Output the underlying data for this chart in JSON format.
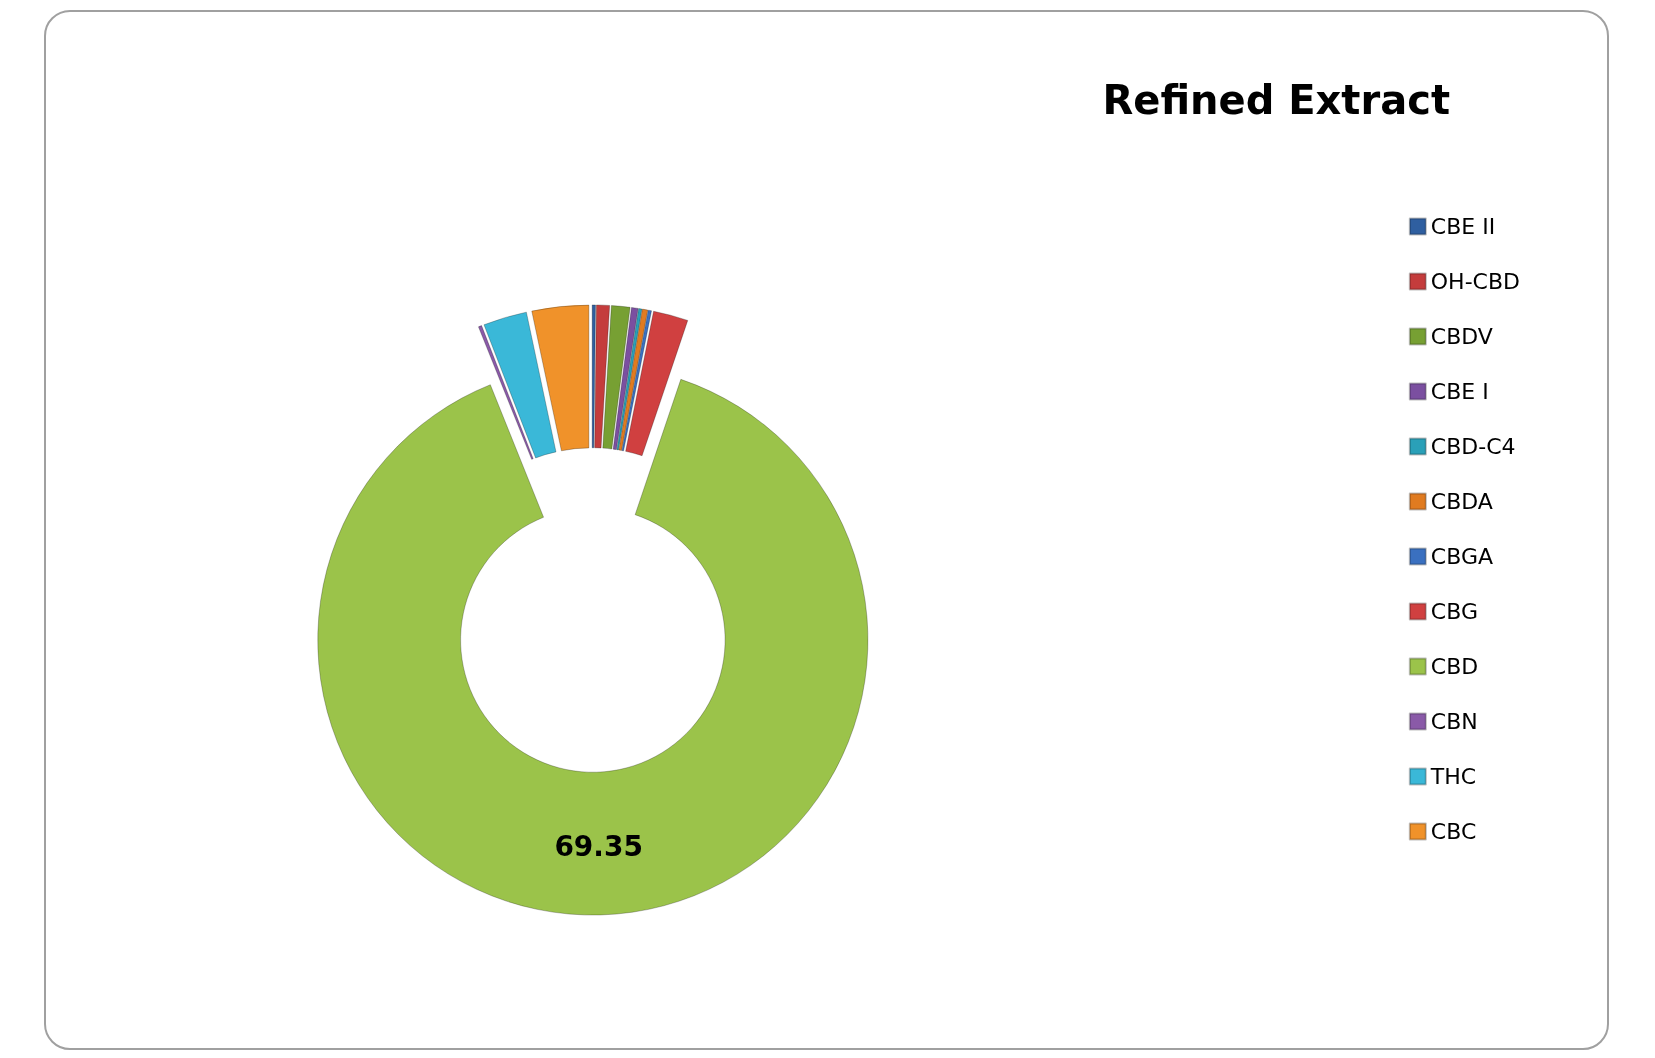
{
  "chart_data": {
    "type": "donut",
    "title": "Refined Extract",
    "categories": [
      "CBE II",
      "OH-CBD",
      "CBDV",
      "CBE I",
      "CBD-C4",
      "CBDA",
      "CBGA",
      "CBG",
      "CBD",
      "CBN",
      "THC",
      "CBC"
    ],
    "values": [
      0.15,
      0.6,
      0.85,
      0.3,
      0.15,
      0.25,
      0.15,
      1.6,
      69.35,
      0.15,
      2.0,
      2.6
    ],
    "colors": [
      "#2f5fa0",
      "#c43c3c",
      "#77a033",
      "#7b4fa0",
      "#2aa0b8",
      "#e07b20",
      "#3a70c0",
      "#d04040",
      "#9bc34a",
      "#8a5aa8",
      "#3ab8d8",
      "#f0922a"
    ],
    "value_labels": [
      null,
      null,
      null,
      null,
      null,
      null,
      null,
      null,
      "69.35",
      null,
      null,
      null
    ],
    "legend": "right"
  }
}
